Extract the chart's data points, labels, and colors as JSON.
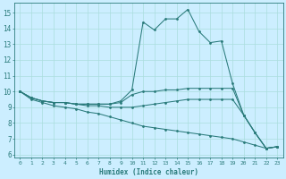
{
  "title": "",
  "xlabel": "Humidex (Indice chaleur)",
  "bg_color": "#cceeff",
  "line_color": "#2a7b7b",
  "grid_color": "#aadddd",
  "xlim": [
    -0.5,
    23.5
  ],
  "ylim": [
    5.8,
    15.6
  ],
  "yticks": [
    6,
    7,
    8,
    9,
    10,
    11,
    12,
    13,
    14,
    15
  ],
  "xticks": [
    0,
    1,
    2,
    3,
    4,
    5,
    6,
    7,
    8,
    9,
    10,
    11,
    12,
    13,
    14,
    15,
    16,
    17,
    18,
    19,
    20,
    21,
    22,
    23
  ],
  "lines": [
    {
      "x": [
        0,
        1,
        2,
        3,
        4,
        5,
        6,
        7,
        8,
        9,
        10,
        11,
        12,
        13,
        14,
        15,
        16,
        17,
        18,
        19,
        20,
        21,
        22,
        23
      ],
      "y": [
        10.0,
        9.6,
        9.4,
        9.3,
        9.3,
        9.2,
        9.2,
        9.2,
        9.2,
        9.4,
        10.1,
        14.4,
        13.9,
        14.6,
        14.6,
        15.2,
        13.8,
        13.1,
        13.2,
        10.5,
        8.5,
        7.4,
        6.4,
        6.5
      ]
    },
    {
      "x": [
        0,
        1,
        2,
        3,
        4,
        5,
        6,
        7,
        8,
        9,
        10,
        11,
        12,
        13,
        14,
        15,
        16,
        17,
        18,
        19,
        20,
        21,
        22,
        23
      ],
      "y": [
        10.0,
        9.6,
        9.4,
        9.3,
        9.3,
        9.2,
        9.2,
        9.2,
        9.2,
        9.3,
        9.8,
        10.0,
        10.0,
        10.1,
        10.1,
        10.2,
        10.2,
        10.2,
        10.2,
        10.2,
        8.5,
        7.4,
        6.4,
        6.5
      ]
    },
    {
      "x": [
        0,
        1,
        2,
        3,
        4,
        5,
        6,
        7,
        8,
        9,
        10,
        11,
        12,
        13,
        14,
        15,
        16,
        17,
        18,
        19,
        20,
        21,
        22,
        23
      ],
      "y": [
        10.0,
        9.6,
        9.4,
        9.3,
        9.3,
        9.2,
        9.1,
        9.1,
        9.0,
        9.0,
        9.0,
        9.1,
        9.2,
        9.3,
        9.4,
        9.5,
        9.5,
        9.5,
        9.5,
        9.5,
        8.5,
        7.4,
        6.4,
        6.5
      ]
    },
    {
      "x": [
        0,
        1,
        2,
        3,
        4,
        5,
        6,
        7,
        8,
        9,
        10,
        11,
        12,
        13,
        14,
        15,
        16,
        17,
        18,
        19,
        20,
        21,
        22,
        23
      ],
      "y": [
        10.0,
        9.5,
        9.3,
        9.1,
        9.0,
        8.9,
        8.7,
        8.6,
        8.4,
        8.2,
        8.0,
        7.8,
        7.7,
        7.6,
        7.5,
        7.4,
        7.3,
        7.2,
        7.1,
        7.0,
        6.8,
        6.6,
        6.4,
        6.5
      ]
    }
  ]
}
